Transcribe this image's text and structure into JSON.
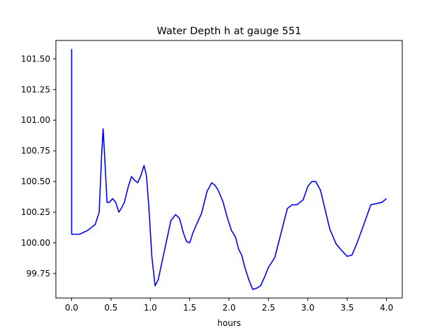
{
  "chart_data": {
    "type": "line",
    "title": "Water Depth h at gauge 551",
    "xlabel": "hours",
    "ylabel": "",
    "xlim": [
      -0.2,
      4.2
    ],
    "ylim": [
      99.55,
      101.65
    ],
    "xticks": [
      0.0,
      0.5,
      1.0,
      1.5,
      2.0,
      2.5,
      3.0,
      3.5,
      4.0
    ],
    "xtick_labels": [
      "0.0",
      "0.5",
      "1.0",
      "1.5",
      "2.0",
      "2.5",
      "3.0",
      "3.5",
      "4.0"
    ],
    "yticks": [
      99.75,
      100.0,
      100.25,
      100.5,
      100.75,
      101.0,
      101.25,
      101.5
    ],
    "ytick_labels": [
      "99.75",
      "100.00",
      "100.25",
      "100.50",
      "100.75",
      "101.00",
      "101.25",
      "101.50"
    ],
    "grid": false,
    "series": [
      {
        "color": "#0000ff",
        "x": [
          0.0,
          0.0,
          0.0,
          0.1,
          0.2,
          0.3,
          0.35,
          0.38,
          0.4,
          0.42,
          0.45,
          0.48,
          0.52,
          0.56,
          0.6,
          0.63,
          0.67,
          0.72,
          0.76,
          0.8,
          0.84,
          0.88,
          0.92,
          0.95,
          0.98,
          1.02,
          1.06,
          1.1,
          1.14,
          1.2,
          1.26,
          1.32,
          1.37,
          1.42,
          1.46,
          1.5,
          1.54,
          1.58,
          1.65,
          1.72,
          1.78,
          1.82,
          1.86,
          1.92,
          1.98,
          2.03,
          2.08,
          2.12,
          2.16,
          2.2,
          2.25,
          2.3,
          2.35,
          2.4,
          2.45,
          2.5,
          2.58,
          2.66,
          2.74,
          2.8,
          2.86,
          2.94,
          3.0,
          3.05,
          3.1,
          3.16,
          3.22,
          3.28,
          3.36,
          3.44,
          3.5,
          3.56,
          3.62,
          3.7,
          3.8,
          3.87,
          3.94,
          4.0
        ],
        "y": [
          101.58,
          100.07,
          100.07,
          100.07,
          100.1,
          100.15,
          100.25,
          100.7,
          100.93,
          100.7,
          100.33,
          100.33,
          100.36,
          100.33,
          100.25,
          100.28,
          100.33,
          100.46,
          100.54,
          100.51,
          100.49,
          100.55,
          100.63,
          100.55,
          100.3,
          99.88,
          99.65,
          99.7,
          99.82,
          100.0,
          100.18,
          100.23,
          100.2,
          100.08,
          100.01,
          100.0,
          100.08,
          100.14,
          100.24,
          100.42,
          100.49,
          100.47,
          100.43,
          100.34,
          100.2,
          100.1,
          100.05,
          99.95,
          99.9,
          99.8,
          99.7,
          99.62,
          99.63,
          99.65,
          99.72,
          99.8,
          99.88,
          100.08,
          100.28,
          100.31,
          100.31,
          100.35,
          100.46,
          100.5,
          100.5,
          100.43,
          100.27,
          100.11,
          99.99,
          99.93,
          99.89,
          99.9,
          99.99,
          100.13,
          100.31,
          100.32,
          100.33,
          100.36
        ]
      }
    ]
  }
}
